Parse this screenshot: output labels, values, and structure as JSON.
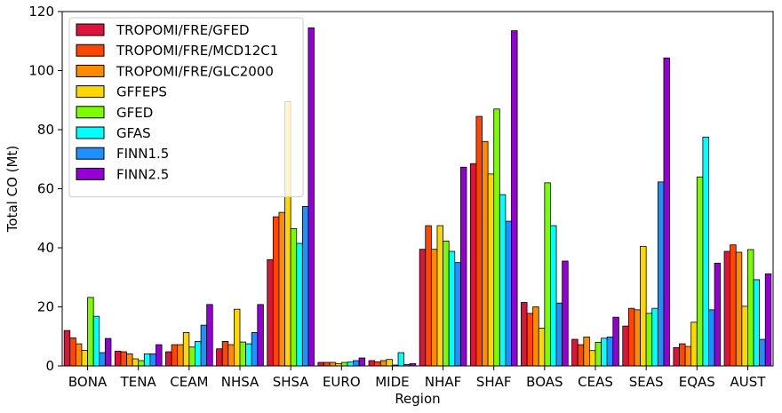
{
  "chart_data": {
    "type": "bar",
    "xlabel": "Region",
    "ylabel": "Total CO (Mt)",
    "ylim": [
      0,
      120
    ],
    "yticks": [
      0,
      20,
      40,
      60,
      80,
      100,
      120
    ],
    "grid": false,
    "legend_position": "top-left",
    "categories": [
      "BONA",
      "TENA",
      "CEAM",
      "NHSA",
      "SHSA",
      "EURO",
      "MIDE",
      "NHAF",
      "SHAF",
      "BOAS",
      "CEAS",
      "SEAS",
      "EQAS",
      "AUST"
    ],
    "series": [
      {
        "name": "TROPOMI/FRE/GFED",
        "color": "#dc143c",
        "values": [
          12,
          5,
          4.8,
          5.8,
          36,
          1.2,
          1.8,
          39.5,
          68.5,
          21.5,
          9,
          13.5,
          6.2,
          38.8
        ]
      },
      {
        "name": "TROPOMI/FRE/MCD12C1",
        "color": "#ff4500",
        "values": [
          9.5,
          4.8,
          7.2,
          8.3,
          50.5,
          1.2,
          1.4,
          47.5,
          84.5,
          17.8,
          7.2,
          19.5,
          7.5,
          41
        ]
      },
      {
        "name": "TROPOMI/FRE/GLC2000",
        "color": "#ff8c00",
        "values": [
          7.5,
          4.1,
          7.2,
          7.2,
          52,
          1.2,
          1.8,
          39.5,
          76,
          20,
          9.8,
          19,
          6.6,
          38.5
        ]
      },
      {
        "name": "GFFEPS",
        "color": "#ffd700",
        "values": [
          5.3,
          2.4,
          11.3,
          19.2,
          89.5,
          0.8,
          2.2,
          47.5,
          65,
          12.8,
          5.2,
          40.5,
          14.8,
          20.2
        ]
      },
      {
        "name": "GFED",
        "color": "#7cfc00",
        "values": [
          23.2,
          1.8,
          6.4,
          8.1,
          46.5,
          1.2,
          0.3,
          42.3,
          87,
          62,
          8,
          17.8,
          64,
          39.4
        ]
      },
      {
        "name": "GFAS",
        "color": "#00ffff",
        "values": [
          16.8,
          4.1,
          8.3,
          7.5,
          41.5,
          1.3,
          4.5,
          38.8,
          58,
          47.5,
          9.4,
          19.5,
          77.5,
          29.2
        ]
      },
      {
        "name": "FINN1.5",
        "color": "#1e90ff",
        "values": [
          4.5,
          4.1,
          13.8,
          11.3,
          54,
          1.8,
          0.5,
          35,
          49,
          21.3,
          9.8,
          62.3,
          19,
          9
        ]
      },
      {
        "name": "FINN2.5",
        "color": "#9400d3",
        "values": [
          9.3,
          7.2,
          20.8,
          20.8,
          114.5,
          2.7,
          0.8,
          67.3,
          113.5,
          35.5,
          16.5,
          104.3,
          34.8,
          31.2
        ]
      }
    ]
  }
}
